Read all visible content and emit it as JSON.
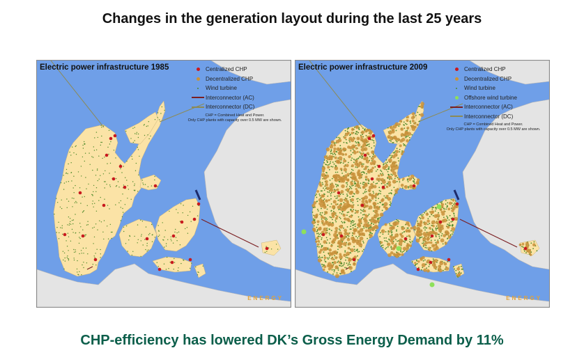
{
  "slide": {
    "title": "Changes in the generation layout during the last 25 years",
    "footer": "CHP-efficiency has lowered DK’s Gross Energy Demand by 11%"
  },
  "colors": {
    "sea": "#6f9fe8",
    "denmark_land": "#fbe3a6",
    "neighbour_land": "#e4e4e4",
    "centralized_chp": "#c8191e",
    "decentralized_chp": "#c8913a",
    "wind_turbine": "#4e8a2a",
    "offshore_wind": "#8ee05a",
    "interconnector_ac": "#7a1e22",
    "interconnector_dc": "#8c8a55",
    "footer_text": "#0b5e4a"
  },
  "maps": [
    {
      "title": "Electric power infrastructure 1985",
      "legend": [
        {
          "label": "Centralized CHP",
          "symbol": "red-dot"
        },
        {
          "label": "Decentralized CHP",
          "symbol": "orange-dot"
        },
        {
          "label": "Wind turbine",
          "symbol": "green-dot"
        },
        {
          "label": "Interconnector (AC)",
          "symbol": "ac-line"
        },
        {
          "label": "Interconnector (DC)",
          "symbol": "dc-line"
        }
      ],
      "note": "CHP = Combined Heat and Power.\nOnly CHP plants with capacity over 0.5 MW are shown.",
      "logo": "ENERGY",
      "density": "low"
    },
    {
      "title": "Electric power infrastructure 2009",
      "legend": [
        {
          "label": "Centralized CHP",
          "symbol": "red-dot"
        },
        {
          "label": "Decentralized CHP",
          "symbol": "orange-dot"
        },
        {
          "label": "Wind turbine",
          "symbol": "green-dot"
        },
        {
          "label": "Offshore wind turbine",
          "symbol": "lightgreen-dot"
        },
        {
          "label": "Interconnector (AC)",
          "symbol": "ac-line"
        },
        {
          "label": "Interconnector (DC)",
          "symbol": "dc-line"
        }
      ],
      "note": "CHP = Combined Heat and Power.\nOnly CHP plants with capacity over 0.5 MW are shown.",
      "logo": "ENERGY",
      "density": "high"
    }
  ]
}
